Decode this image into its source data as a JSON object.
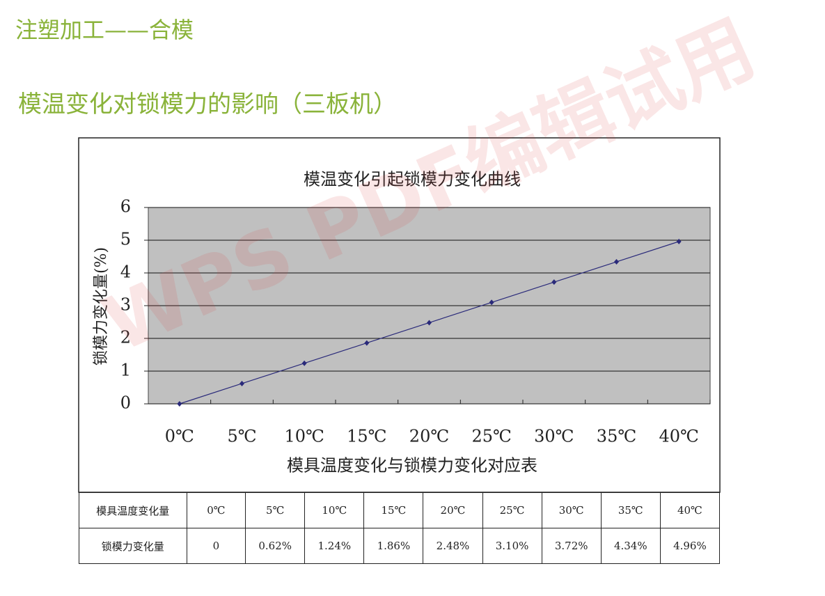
{
  "title": "注塑加工——合模",
  "subtitle": "模温变化对锁模力的影响（三板机）",
  "watermark": "WPS PDF编辑试用",
  "chart_data": {
    "type": "line",
    "title": "模温变化引起锁模力变化曲线",
    "x_label": "模具温度变化与锁模力变化对应表",
    "y_label": "锁模力变化量(%)",
    "categories": [
      "0℃",
      "5℃",
      "10℃",
      "15℃",
      "20℃",
      "25℃",
      "30℃",
      "35℃",
      "40℃"
    ],
    "series": [
      {
        "name": "锁模力变化量",
        "color": "#2a2a7a",
        "values": [
          0,
          0.62,
          1.24,
          1.86,
          2.48,
          3.1,
          3.72,
          4.34,
          4.96
        ]
      }
    ],
    "ylim": [
      0,
      6
    ],
    "yticks": [
      0,
      1,
      2,
      3,
      4,
      5,
      6
    ],
    "grid": true,
    "background": "#c0c0c0"
  },
  "table": {
    "rows": [
      [
        "模具温度变化量",
        "0℃",
        "5℃",
        "10℃",
        "15℃",
        "20℃",
        "25℃",
        "30℃",
        "35℃",
        "40℃"
      ],
      [
        "锁模力变化量",
        "0",
        "0.62%",
        "1.24%",
        "1.86%",
        "2.48%",
        "3.10%",
        "3.72%",
        "4.34%",
        "4.96%"
      ]
    ]
  }
}
